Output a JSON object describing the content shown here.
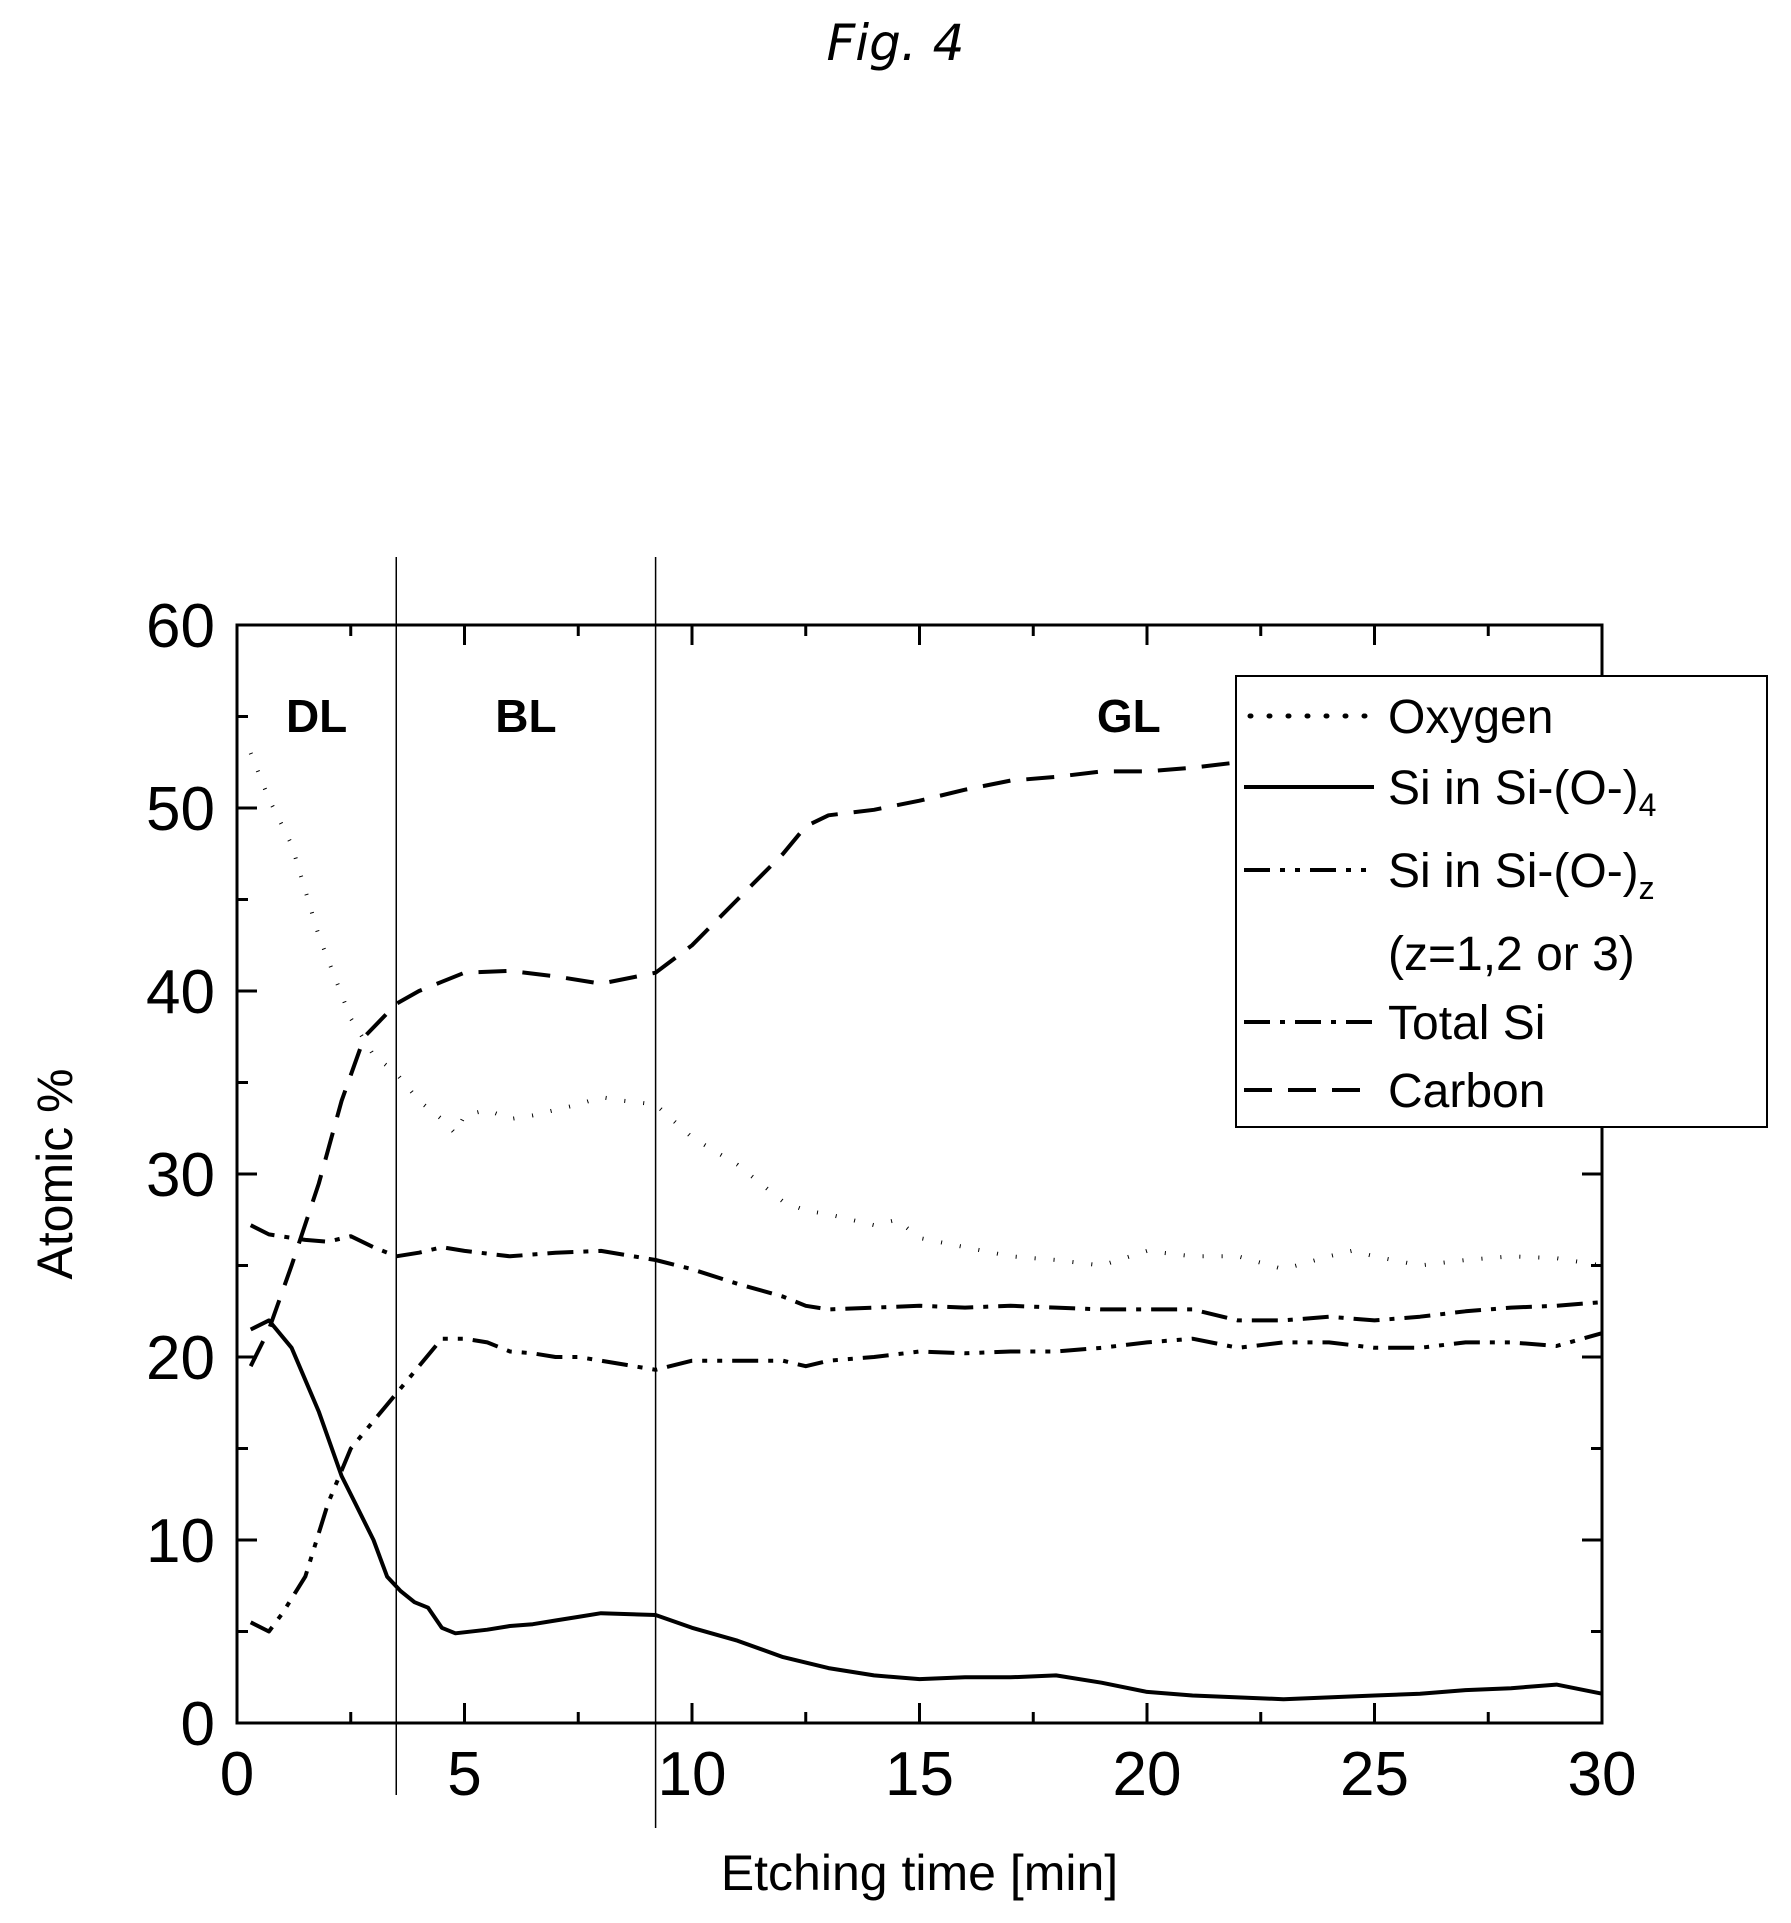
{
  "figure_label": "Fig. 4",
  "chart_data": {
    "type": "line",
    "xlabel": "Etching time [min]",
    "ylabel": "Atomic %",
    "xlim": [
      0,
      30
    ],
    "ylim": [
      0,
      60
    ],
    "x_ticks": [
      0,
      5,
      10,
      15,
      20,
      25,
      30
    ],
    "y_ticks": [
      0,
      10,
      20,
      30,
      40,
      50,
      60
    ],
    "grid": false,
    "legend_position": "top-right",
    "regions": [
      {
        "label": "DL",
        "x_start": 0,
        "x_end": 3.5
      },
      {
        "label": "BL",
        "x_start": 3.5,
        "x_end": 9.2
      },
      {
        "label": "GL",
        "x_start": 9.2,
        "x_end": 30
      }
    ],
    "boundaries": [
      3.5,
      9.2
    ],
    "series": [
      {
        "name": "Oxygen",
        "style": "dotted",
        "x": [
          0.3,
          0.7,
          1.2,
          1.8,
          2.5,
          3.0,
          3.5,
          4.0,
          4.5,
          4.8,
          5.0,
          5.5,
          6.0,
          6.5,
          7.0,
          7.5,
          8.0,
          8.5,
          9.2,
          10.0,
          11.0,
          11.5,
          12.0,
          12.5,
          13.0,
          14.0,
          14.5,
          15.0,
          16.0,
          17.0,
          18.0,
          19.0,
          20.0,
          21.0,
          22.0,
          23.0,
          24.0,
          24.5,
          25.0,
          26.0,
          27.0,
          28.0,
          29.0,
          30.0
        ],
        "y": [
          53.0,
          50.5,
          48.0,
          43.0,
          38.5,
          36.5,
          35.5,
          34.0,
          33.0,
          32.2,
          33.2,
          33.5,
          33.0,
          33.2,
          33.5,
          33.8,
          34.2,
          34.0,
          33.8,
          32.0,
          30.5,
          29.5,
          28.5,
          28.0,
          27.8,
          27.2,
          27.5,
          26.5,
          26.0,
          25.5,
          25.3,
          25.0,
          25.8,
          25.5,
          25.5,
          24.8,
          25.5,
          25.8,
          25.5,
          25.0,
          25.3,
          25.5,
          25.4,
          25.0
        ]
      },
      {
        "name": "Si in Si-(O-)4",
        "style": "solid",
        "x": [
          0.3,
          0.7,
          1.2,
          1.8,
          2.3,
          2.6,
          3.0,
          3.3,
          3.6,
          3.9,
          4.2,
          4.5,
          4.8,
          5.5,
          6.0,
          6.5,
          7.0,
          7.5,
          8.0,
          9.2,
          10.0,
          11.0,
          12.0,
          13.0,
          14.0,
          15.0,
          16.0,
          17.0,
          18.0,
          19.0,
          20.0,
          21.0,
          22.0,
          23.0,
          24.0,
          25.0,
          26.0,
          27.0,
          28.0,
          29.0,
          30.0
        ],
        "y": [
          21.5,
          22.0,
          20.5,
          17.0,
          13.5,
          12.0,
          10.0,
          8.0,
          7.2,
          6.6,
          6.3,
          5.2,
          4.9,
          5.1,
          5.3,
          5.4,
          5.6,
          5.8,
          6.0,
          5.9,
          5.2,
          4.5,
          3.6,
          3.0,
          2.6,
          2.4,
          2.5,
          2.5,
          2.6,
          2.2,
          1.7,
          1.5,
          1.4,
          1.3,
          1.4,
          1.5,
          1.6,
          1.8,
          1.9,
          2.1,
          1.6
        ]
      },
      {
        "name": "Si in Si-(O-)z",
        "style": "dash-dot-dot",
        "x": [
          0.3,
          0.7,
          1.0,
          1.5,
          2.0,
          2.5,
          3.0,
          3.5,
          4.0,
          4.5,
          5.0,
          5.5,
          6.0,
          6.5,
          7.0,
          7.5,
          8.0,
          9.2,
          10.0,
          11.0,
          12.0,
          12.5,
          13.0,
          14.0,
          15.0,
          16.0,
          17.0,
          18.0,
          19.0,
          20.0,
          21.0,
          22.0,
          23.0,
          24.0,
          25.0,
          26.0,
          27.0,
          28.0,
          29.0,
          30.0
        ],
        "y": [
          5.5,
          5.0,
          6.0,
          8.0,
          12.0,
          15.0,
          16.5,
          18.0,
          19.5,
          21.0,
          21.0,
          20.8,
          20.3,
          20.2,
          20.0,
          20.0,
          19.8,
          19.3,
          19.8,
          19.8,
          19.8,
          19.5,
          19.8,
          20.0,
          20.3,
          20.2,
          20.3,
          20.3,
          20.5,
          20.8,
          21.0,
          20.5,
          20.8,
          20.8,
          20.5,
          20.5,
          20.8,
          20.8,
          20.6,
          21.3
        ]
      },
      {
        "name": "Total Si",
        "style": "dash-dot",
        "x": [
          0.3,
          0.7,
          1.5,
          2.0,
          2.5,
          3.0,
          3.5,
          4.0,
          4.5,
          5.0,
          6.0,
          7.0,
          8.0,
          9.2,
          10.0,
          11.0,
          12.0,
          12.5,
          13.0,
          14.0,
          15.0,
          16.0,
          17.0,
          18.0,
          19.0,
          20.0,
          21.0,
          22.0,
          23.0,
          24.0,
          25.0,
          26.0,
          27.0,
          28.0,
          29.0,
          30.0
        ],
        "y": [
          27.2,
          26.7,
          26.4,
          26.3,
          26.6,
          26.0,
          25.5,
          25.7,
          26.0,
          25.8,
          25.5,
          25.7,
          25.8,
          25.3,
          24.8,
          24.0,
          23.3,
          22.8,
          22.6,
          22.7,
          22.8,
          22.7,
          22.8,
          22.7,
          22.6,
          22.6,
          22.6,
          22.0,
          22.0,
          22.2,
          22.0,
          22.2,
          22.5,
          22.7,
          22.8,
          23.0
        ]
      },
      {
        "name": "Carbon",
        "style": "dashed",
        "x": [
          0.3,
          0.7,
          1.2,
          1.8,
          2.3,
          2.8,
          3.5,
          4.0,
          4.5,
          5.0,
          6.0,
          7.0,
          8.0,
          9.2,
          10.0,
          11.0,
          12.0,
          12.5,
          13.0,
          14.0,
          15.0,
          16.0,
          17.0,
          18.0,
          19.0,
          20.0,
          21.0,
          22.0,
          23.0,
          24.0,
          25.0
        ],
        "y": [
          19.5,
          21.5,
          25.0,
          29.5,
          34.0,
          37.5,
          39.3,
          40.0,
          40.5,
          41.0,
          41.1,
          40.8,
          40.4,
          41.0,
          42.5,
          45.0,
          47.5,
          49.0,
          49.6,
          49.9,
          50.4,
          51.0,
          51.5,
          51.7,
          52.0,
          52.0,
          52.2,
          52.5,
          52.5,
          52.7,
          52.8
        ]
      }
    ],
    "legend": [
      {
        "label": "Oxygen",
        "style": "dotted"
      },
      {
        "label": "Si in Si-(O-)",
        "sub": "4",
        "style": "solid"
      },
      {
        "label": "Si in Si-(O-)",
        "sub": "z",
        "style": "dash-dot-dot"
      },
      {
        "label": "(z=1,2 or 3)",
        "sub": "",
        "style": "none"
      },
      {
        "label": "Total Si",
        "style": "dash-dot"
      },
      {
        "label": "Carbon",
        "style": "dashed"
      }
    ]
  }
}
